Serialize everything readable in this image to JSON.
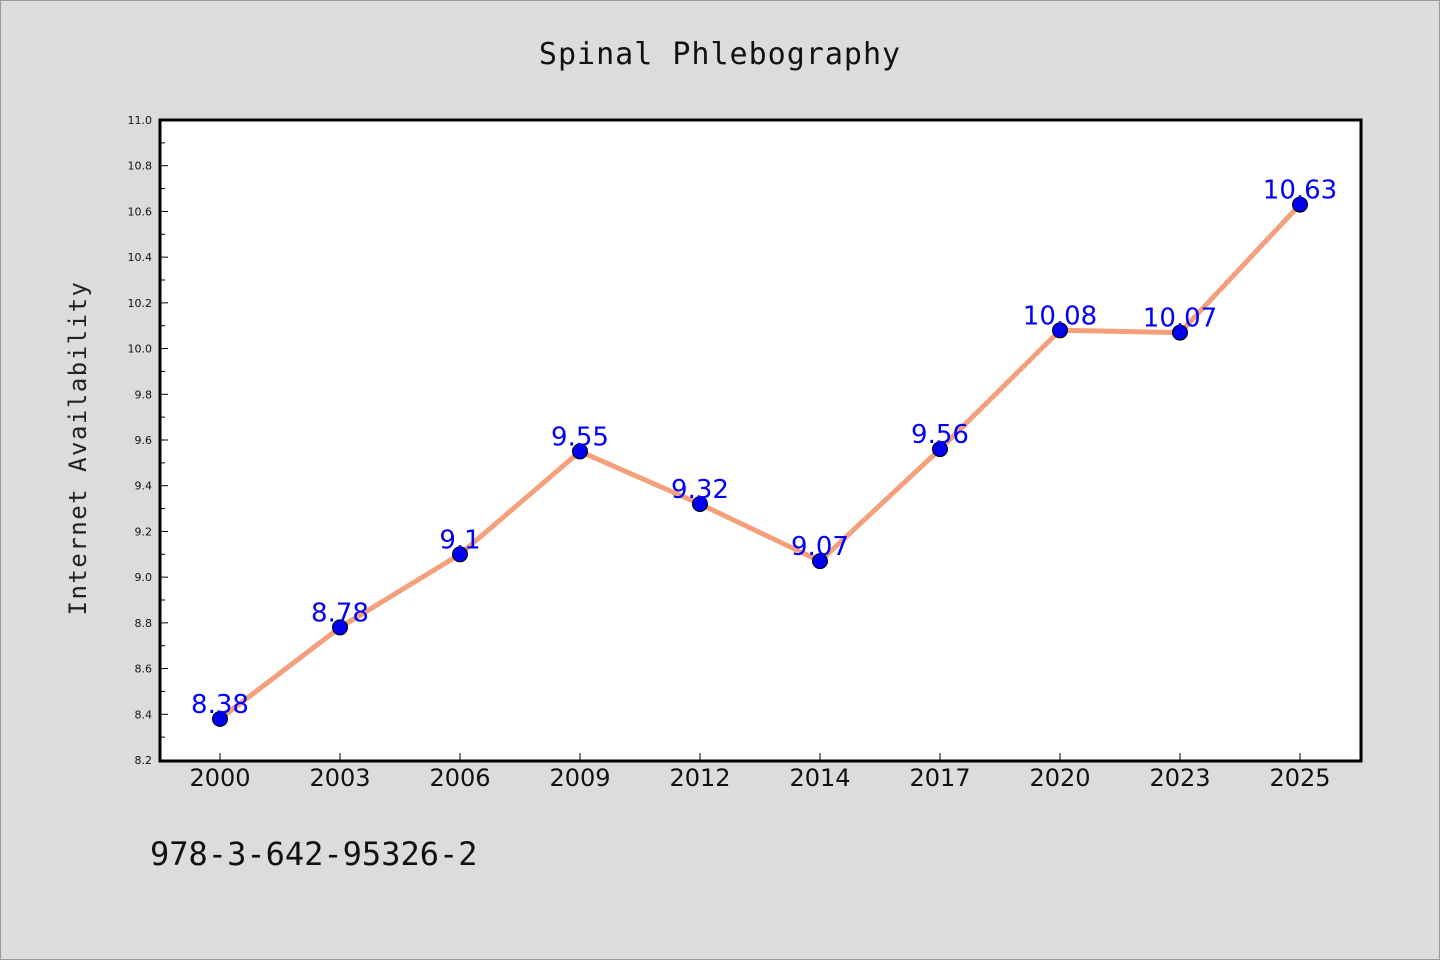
{
  "chart_data": {
    "type": "line",
    "title": "Spinal Phlebography",
    "xlabel": "",
    "ylabel": "Internet Availability",
    "categories": [
      "2000",
      "2003",
      "2006",
      "2009",
      "2012",
      "2014",
      "2017",
      "2020",
      "2023",
      "2025"
    ],
    "series": [
      {
        "values": [
          8.38,
          8.78,
          9.1,
          9.55,
          9.32,
          9.07,
          9.56,
          10.08,
          10.07,
          10.63
        ],
        "data_labels": [
          "8.38",
          "8.78",
          "9.1",
          "9.55",
          "9.32",
          "9.07",
          "9.56",
          "10.08",
          "10.07",
          "10.63"
        ]
      }
    ],
    "ylim": [
      8.2,
      11.0
    ],
    "yticks": [
      "8.2",
      "8.4",
      "8.6",
      "8.8",
      "9.0",
      "9.2",
      "9.4",
      "9.6",
      "9.8",
      "10.0",
      "10.2",
      "10.4",
      "10.6",
      "10.8",
      "11.0"
    ],
    "grid": false,
    "legend": "none",
    "colors": {
      "line": "#f4a07c",
      "marker": "#0000ee",
      "labels": "#0000ff",
      "background": "#dcdcdc",
      "plot_area": "#ffffff"
    }
  },
  "footnote": "978-3-642-95326-2"
}
